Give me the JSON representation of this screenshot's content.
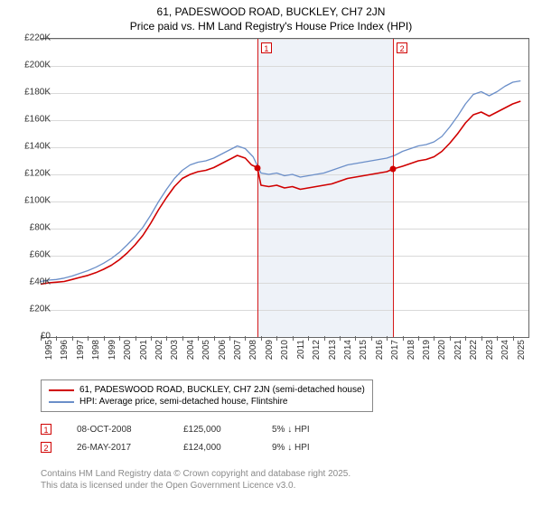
{
  "title_line1": "61, PADESWOOD ROAD, BUCKLEY, CH7 2JN",
  "title_line2": "Price paid vs. HM Land Registry's House Price Index (HPI)",
  "chart": {
    "type": "line",
    "background_color": "#ffffff",
    "grid_color": "#d9d9d9",
    "axis_color": "#666666",
    "shade_color": "#eef2f8",
    "ylim": [
      0,
      220000
    ],
    "ytick_step": 20000,
    "yticks": [
      "£0",
      "£20K",
      "£40K",
      "£60K",
      "£80K",
      "£100K",
      "£120K",
      "£140K",
      "£160K",
      "£180K",
      "£200K",
      "£220K"
    ],
    "xlim": [
      1995,
      2026
    ],
    "xticks": [
      1995,
      1996,
      1997,
      1998,
      1999,
      2000,
      2001,
      2002,
      2003,
      2004,
      2005,
      2006,
      2007,
      2008,
      2009,
      2010,
      2011,
      2012,
      2013,
      2014,
      2015,
      2016,
      2017,
      2018,
      2019,
      2020,
      2021,
      2022,
      2023,
      2024,
      2025
    ],
    "shade_x": [
      2008.77,
      2017.4
    ],
    "series": [
      {
        "name": "property",
        "label": "61, PADESWOOD ROAD, BUCKLEY, CH7 2JN (semi-detached house)",
        "color": "#d00000",
        "line_width": 1.6,
        "points": [
          [
            1995,
            39000
          ],
          [
            1995.5,
            40000
          ],
          [
            1996,
            40500
          ],
          [
            1996.5,
            41000
          ],
          [
            1997,
            42500
          ],
          [
            1997.5,
            44000
          ],
          [
            1998,
            45500
          ],
          [
            1998.5,
            47500
          ],
          [
            1999,
            50000
          ],
          [
            1999.5,
            53000
          ],
          [
            2000,
            57000
          ],
          [
            2000.5,
            62000
          ],
          [
            2001,
            68000
          ],
          [
            2001.5,
            75000
          ],
          [
            2002,
            84000
          ],
          [
            2002.5,
            94000
          ],
          [
            2003,
            103000
          ],
          [
            2003.5,
            111000
          ],
          [
            2004,
            117000
          ],
          [
            2004.5,
            120000
          ],
          [
            2005,
            122000
          ],
          [
            2005.5,
            123000
          ],
          [
            2006,
            125000
          ],
          [
            2006.5,
            128000
          ],
          [
            2007,
            131000
          ],
          [
            2007.5,
            134000
          ],
          [
            2008,
            132000
          ],
          [
            2008.4,
            127000
          ],
          [
            2008.77,
            125000
          ],
          [
            2009,
            112000
          ],
          [
            2009.5,
            111000
          ],
          [
            2010,
            112000
          ],
          [
            2010.5,
            110000
          ],
          [
            2011,
            111000
          ],
          [
            2011.5,
            109000
          ],
          [
            2012,
            110000
          ],
          [
            2012.5,
            111000
          ],
          [
            2013,
            112000
          ],
          [
            2013.5,
            113000
          ],
          [
            2014,
            115000
          ],
          [
            2014.5,
            117000
          ],
          [
            2015,
            118000
          ],
          [
            2015.5,
            119000
          ],
          [
            2016,
            120000
          ],
          [
            2016.5,
            121000
          ],
          [
            2017,
            122000
          ],
          [
            2017.4,
            124000
          ],
          [
            2018,
            126000
          ],
          [
            2018.5,
            128000
          ],
          [
            2019,
            130000
          ],
          [
            2019.5,
            131000
          ],
          [
            2020,
            133000
          ],
          [
            2020.5,
            137000
          ],
          [
            2021,
            143000
          ],
          [
            2021.5,
            150000
          ],
          [
            2022,
            158000
          ],
          [
            2022.5,
            164000
          ],
          [
            2023,
            166000
          ],
          [
            2023.5,
            163000
          ],
          [
            2024,
            166000
          ],
          [
            2024.5,
            169000
          ],
          [
            2025,
            172000
          ],
          [
            2025.5,
            174000
          ]
        ]
      },
      {
        "name": "hpi",
        "label": "HPI: Average price, semi-detached house, Flintshire",
        "color": "#6b8fc9",
        "line_width": 1.3,
        "points": [
          [
            1995,
            41000
          ],
          [
            1995.5,
            42000
          ],
          [
            1996,
            42500
          ],
          [
            1996.5,
            43500
          ],
          [
            1997,
            45000
          ],
          [
            1997.5,
            47000
          ],
          [
            1998,
            49000
          ],
          [
            1998.5,
            51500
          ],
          [
            1999,
            54500
          ],
          [
            1999.5,
            58000
          ],
          [
            2000,
            62500
          ],
          [
            2000.5,
            68000
          ],
          [
            2001,
            74000
          ],
          [
            2001.5,
            81000
          ],
          [
            2002,
            90000
          ],
          [
            2002.5,
            100000
          ],
          [
            2003,
            109000
          ],
          [
            2003.5,
            117000
          ],
          [
            2004,
            123000
          ],
          [
            2004.5,
            127000
          ],
          [
            2005,
            129000
          ],
          [
            2005.5,
            130000
          ],
          [
            2006,
            132000
          ],
          [
            2006.5,
            135000
          ],
          [
            2007,
            138000
          ],
          [
            2007.5,
            141000
          ],
          [
            2008,
            139000
          ],
          [
            2008.5,
            133000
          ],
          [
            2009,
            121000
          ],
          [
            2009.5,
            120000
          ],
          [
            2010,
            121000
          ],
          [
            2010.5,
            119000
          ],
          [
            2011,
            120000
          ],
          [
            2011.5,
            118000
          ],
          [
            2012,
            119000
          ],
          [
            2012.5,
            120000
          ],
          [
            2013,
            121000
          ],
          [
            2013.5,
            123000
          ],
          [
            2014,
            125000
          ],
          [
            2014.5,
            127000
          ],
          [
            2015,
            128000
          ],
          [
            2015.5,
            129000
          ],
          [
            2016,
            130000
          ],
          [
            2016.5,
            131000
          ],
          [
            2017,
            132000
          ],
          [
            2017.5,
            134000
          ],
          [
            2018,
            137000
          ],
          [
            2018.5,
            139000
          ],
          [
            2019,
            141000
          ],
          [
            2019.5,
            142000
          ],
          [
            2020,
            144000
          ],
          [
            2020.5,
            148000
          ],
          [
            2021,
            155000
          ],
          [
            2021.5,
            163000
          ],
          [
            2022,
            172000
          ],
          [
            2022.5,
            179000
          ],
          [
            2023,
            181000
          ],
          [
            2023.5,
            178000
          ],
          [
            2024,
            181000
          ],
          [
            2024.5,
            185000
          ],
          [
            2025,
            188000
          ],
          [
            2025.5,
            189000
          ]
        ]
      }
    ],
    "markers": [
      {
        "id": "1",
        "x": 2008.77,
        "y": 125000
      },
      {
        "id": "2",
        "x": 2017.4,
        "y": 124000
      }
    ]
  },
  "legend": {
    "items": [
      {
        "color": "#d00000",
        "label": "61, PADESWOOD ROAD, BUCKLEY, CH7 2JN (semi-detached house)"
      },
      {
        "color": "#6b8fc9",
        "label": "HPI: Average price, semi-detached house, Flintshire"
      }
    ]
  },
  "sales": [
    {
      "id": "1",
      "date": "08-OCT-2008",
      "price": "£125,000",
      "delta": "5% ↓ HPI"
    },
    {
      "id": "2",
      "date": "26-MAY-2017",
      "price": "£124,000",
      "delta": "9% ↓ HPI"
    }
  ],
  "footer": {
    "line1": "Contains HM Land Registry data © Crown copyright and database right 2025.",
    "line2": "This data is licensed under the Open Government Licence v3.0."
  }
}
